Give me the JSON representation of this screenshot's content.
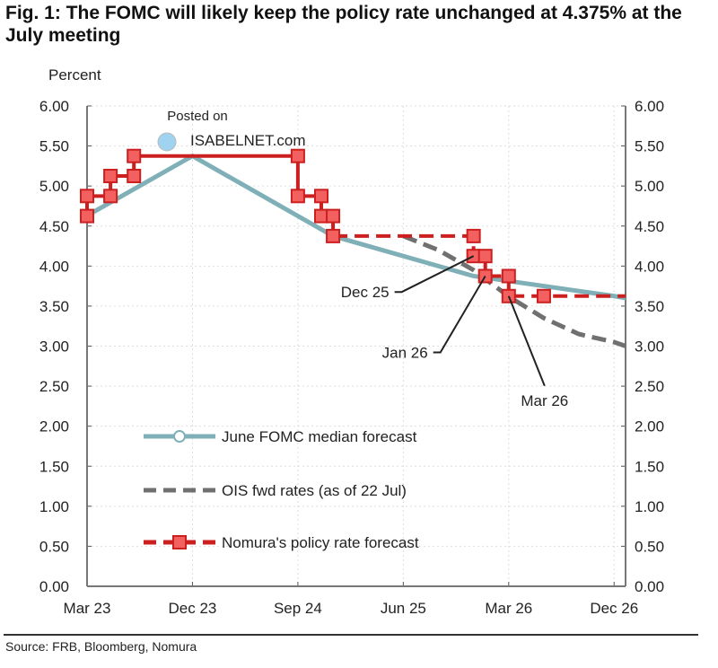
{
  "title": "Fig. 1: The FOMC will likely keep the policy rate unchanged at 4.375% at the July meeting",
  "source": "Source: FRB, Bloomberg, Nomura",
  "watermark": "Posted on ISABELNET.com",
  "chart_data": {
    "type": "line",
    "title": "Fig. 1: The FOMC will likely keep the policy rate unchanged at 4.375% at the July meeting",
    "ylabel": "Percent",
    "xlabel": "",
    "ylim": [
      0,
      6
    ],
    "xlim": [
      "2023-03",
      "2027-01"
    ],
    "yticks": [
      "0.00",
      "0.50",
      "1.00",
      "1.50",
      "2.00",
      "2.50",
      "3.00",
      "3.50",
      "4.00",
      "4.50",
      "5.00",
      "5.50",
      "6.00"
    ],
    "xticks": [
      {
        "date": "2023-03",
        "label": "Mar 23"
      },
      {
        "date": "2023-12",
        "label": "Dec 23"
      },
      {
        "date": "2024-09",
        "label": "Sep 24"
      },
      {
        "date": "2025-06",
        "label": "Jun 25"
      },
      {
        "date": "2026-03",
        "label": "Mar 26"
      },
      {
        "date": "2026-12",
        "label": "Dec 26"
      }
    ],
    "grid": true,
    "legend_position": "bottom-left inside plot",
    "series": [
      {
        "name": "June FOMC median forecast",
        "color": "#7fb0b8",
        "style": "solid",
        "marker": "circle",
        "points": [
          [
            "2023-03",
            4.63
          ],
          [
            "2023-12",
            5.375
          ],
          [
            "2024-12",
            4.375
          ],
          [
            "2025-12",
            3.875
          ],
          [
            "2026-12",
            3.625
          ],
          [
            "2027-01",
            3.6
          ]
        ]
      },
      {
        "name": "OIS fwd rates (as of 22 Jul)",
        "color": "#707070",
        "style": "dashed",
        "marker": "none",
        "points": [
          [
            "2025-06",
            4.375
          ],
          [
            "2025-09",
            4.2
          ],
          [
            "2025-12",
            3.95
          ],
          [
            "2026-03",
            3.62
          ],
          [
            "2026-06",
            3.35
          ],
          [
            "2026-09",
            3.15
          ],
          [
            "2026-12",
            3.05
          ],
          [
            "2027-01",
            3.0
          ]
        ]
      },
      {
        "name": "Nomura's policy rate forecast",
        "color": "#cc1f1f",
        "style": "solid-then-dashed",
        "marker": "square",
        "dashed_from": "2024-12",
        "points": [
          [
            "2023-03",
            4.625
          ],
          [
            "2023-03",
            4.875
          ],
          [
            "2023-05",
            4.875
          ],
          [
            "2023-05",
            5.125
          ],
          [
            "2023-07",
            5.125
          ],
          [
            "2023-07",
            5.375
          ],
          [
            "2024-09",
            5.375
          ],
          [
            "2024-09",
            4.875
          ],
          [
            "2024-11",
            4.875
          ],
          [
            "2024-11",
            4.625
          ],
          [
            "2024-12",
            4.625
          ],
          [
            "2024-12",
            4.375
          ],
          [
            "2025-12",
            4.375
          ],
          [
            "2025-12",
            4.125
          ],
          [
            "2026-01",
            4.125
          ],
          [
            "2026-01",
            3.875
          ],
          [
            "2026-03",
            3.875
          ],
          [
            "2026-03",
            3.625
          ],
          [
            "2026-06",
            3.625
          ],
          [
            "2027-01",
            3.625
          ]
        ]
      }
    ],
    "annotations": [
      {
        "text": "Dec 25",
        "date": "2025-12",
        "value": 4.125
      },
      {
        "text": "Jan 26",
        "date": "2026-01",
        "value": 3.875
      },
      {
        "text": "Mar 26",
        "date": "2026-03",
        "value": 3.625
      }
    ]
  }
}
